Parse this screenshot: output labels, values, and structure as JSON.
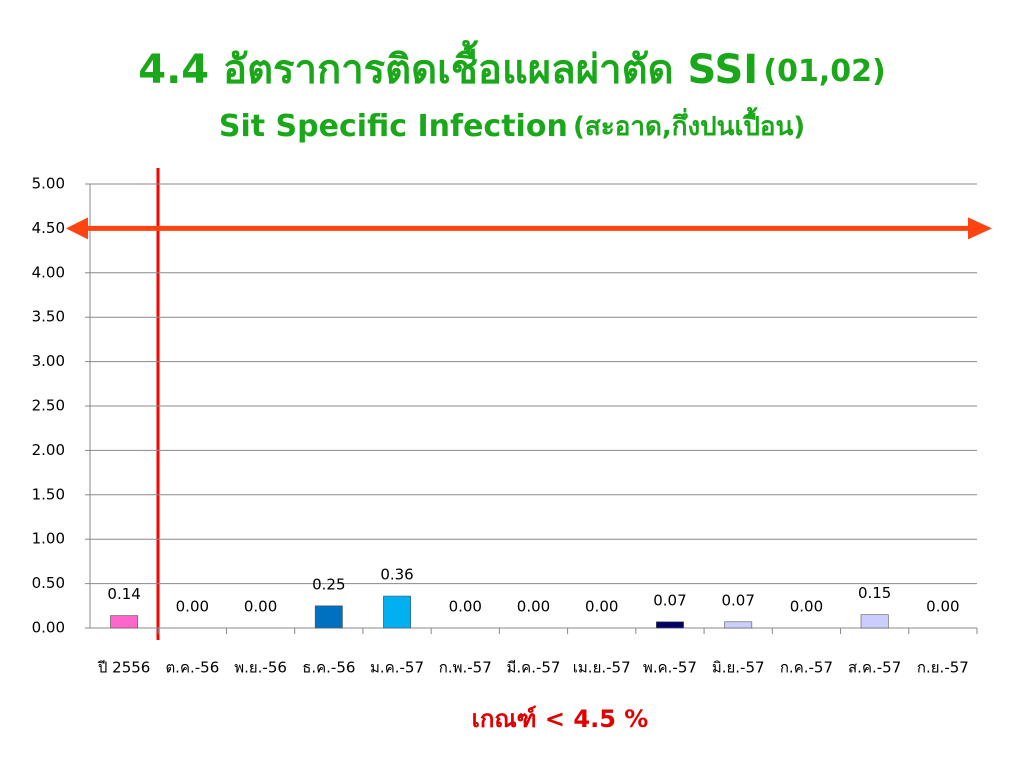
{
  "chart_data": {
    "type": "bar",
    "title": [
      "4.4 อัตราการติดเชื้อแผลผ่าตัด SSI",
      "(01,02)"
    ],
    "subtitle": [
      "Sit Specific Infection",
      "(สะอาด,กึ่งปนเปื้อน)"
    ],
    "categories": [
      "ปี 2556",
      "ต.ค.-56",
      "พ.ย.-56",
      "ธ.ค.-56",
      "ม.ค.-57",
      "ก.พ.-57",
      "มี.ค.-57",
      "เม.ย.-57",
      "พ.ค.-57",
      "มิ.ย.-57",
      "ก.ค.-57",
      "ส.ค.-57",
      "ก.ย.-57"
    ],
    "values": [
      0.14,
      0,
      0,
      0.25,
      0.36,
      0,
      0,
      0,
      0.07,
      0.07,
      0,
      0.15,
      0
    ],
    "value_labels": [
      "0.14",
      "0.00",
      "0.00",
      "0.25",
      "0.36",
      "0.00",
      "0.00",
      "0.00",
      "0.07",
      "0.07",
      "0.00",
      "0.15",
      "0.00"
    ],
    "colors": [
      "#ff66cc",
      "#4472c4",
      "#4472c4",
      "#0070c0",
      "#00b0f0",
      "#4472c4",
      "#4472c4",
      "#4472c4",
      "#000066",
      "#ccccff",
      "#4472c4",
      "#ccccff",
      "#4472c4"
    ],
    "ylim": [
      0,
      5
    ],
    "yticks": [
      {
        "value": 0,
        "label": "0.00"
      },
      {
        "value": 0.5,
        "label": "0.50"
      },
      {
        "value": 1,
        "label": "1.00"
      },
      {
        "value": 1.5,
        "label": "1.50"
      },
      {
        "value": 2,
        "label": "2.00"
      },
      {
        "value": 2.5,
        "label": "2.50"
      },
      {
        "value": 3,
        "label": "3.00"
      },
      {
        "value": 3.5,
        "label": "3.50"
      },
      {
        "value": 4,
        "label": "4.00"
      },
      {
        "value": 4.5,
        "label": "4.50"
      },
      {
        "value": 5,
        "label": "5.00"
      }
    ],
    "grid": true,
    "threshold": 4.5,
    "threshold_color": "#ff4411",
    "annotation": "เกณฑ์ < 4.5 %"
  }
}
